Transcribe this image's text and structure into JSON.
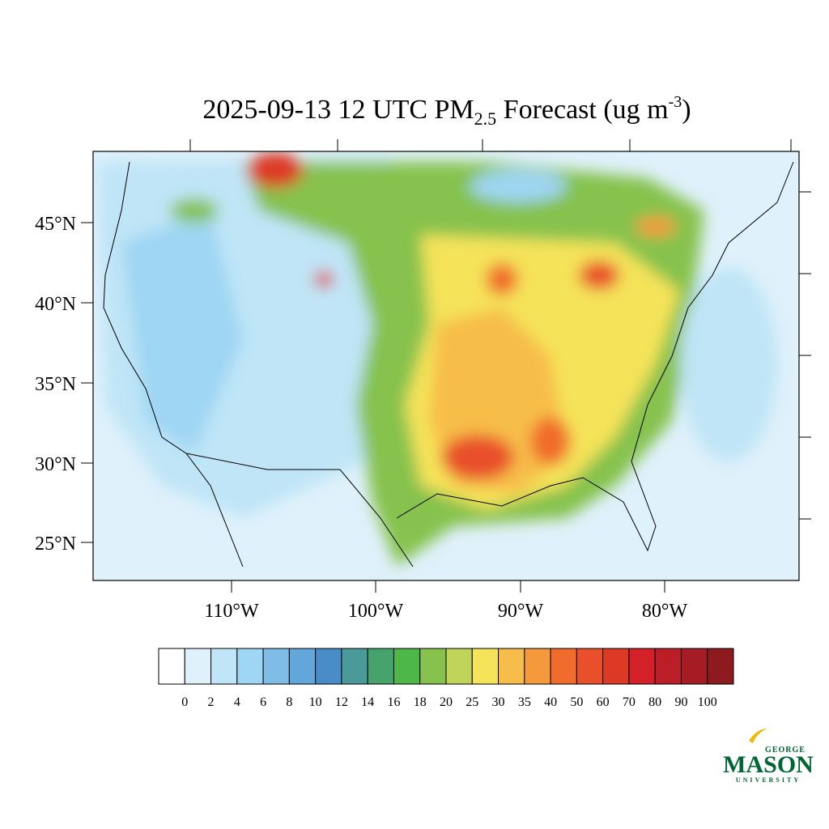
{
  "title": {
    "main": "2025-09-13 12 UTC PM",
    "sub": "2.5",
    "mid": " Forecast (ug m",
    "sup": "-3",
    "end": ")"
  },
  "lat_labels": [
    "45°N",
    "40°N",
    "35°N",
    "30°N",
    "25°N"
  ],
  "lon_labels": [
    "110°W",
    "100°W",
    "90°W",
    "80°W"
  ],
  "colorbar": {
    "levels": [
      0,
      2,
      4,
      6,
      8,
      10,
      12,
      14,
      16,
      18,
      20,
      25,
      30,
      35,
      40,
      50,
      60,
      70,
      80,
      90,
      100
    ],
    "colors": [
      "#ffffff",
      "#dff1fb",
      "#bfe5f7",
      "#9fd6f3",
      "#80bde6",
      "#63a6da",
      "#4a8cc8",
      "#4b9a9a",
      "#45a36b",
      "#4db848",
      "#86c24d",
      "#c1d45a",
      "#f5e35a",
      "#f7bd4a",
      "#f59a3c",
      "#f06c2c",
      "#e84f2a",
      "#dd3a26",
      "#d42028",
      "#bb1e26",
      "#a51c24",
      "#8c1a1e"
    ]
  },
  "logo": {
    "top": "GEORGE",
    "main": "MASON",
    "bottom": "UNIVERSITY"
  }
}
